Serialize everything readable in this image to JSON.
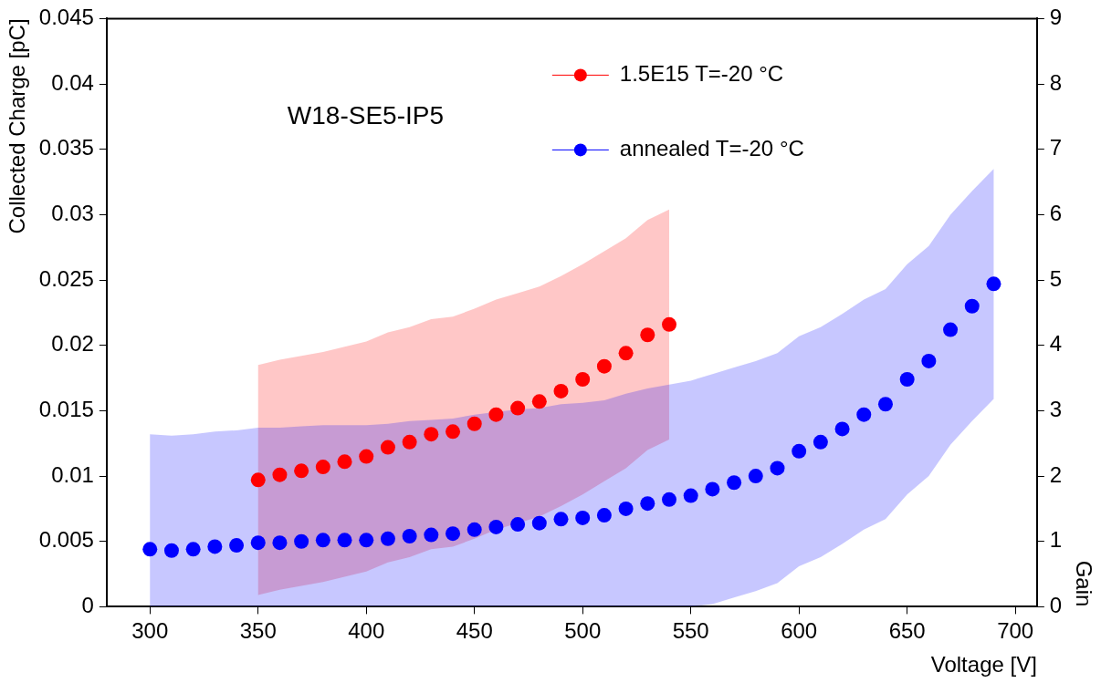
{
  "chart_data": {
    "type": "scatter",
    "xlabel": "Voltage [V]",
    "ylabel": "Collected Charge [pC]",
    "y2label": "Gain",
    "annotations": [
      "W18-SE5-IP5"
    ],
    "xlim": [
      280,
      710
    ],
    "xticks": [
      300,
      350,
      400,
      450,
      500,
      550,
      600,
      650,
      700
    ],
    "ylim": [
      0,
      0.045
    ],
    "yticks": [
      0,
      0.005,
      0.01,
      0.015,
      0.02,
      0.025,
      0.03,
      0.035,
      0.04,
      0.045
    ],
    "y2lim": [
      0,
      9
    ],
    "y2ticks": [
      0,
      1,
      2,
      3,
      4,
      5,
      6,
      7,
      8,
      9
    ],
    "legend": "top right",
    "marker": "circle",
    "series": [
      {
        "name": "1.5E15 T=-20 °C",
        "color": "#ff0000",
        "x": [
          350,
          360,
          370,
          380,
          390,
          400,
          410,
          420,
          430,
          440,
          450,
          460,
          470,
          480,
          490,
          500,
          510,
          520,
          530,
          540
        ],
        "values": [
          0.0097,
          0.0101,
          0.0104,
          0.0107,
          0.0111,
          0.0115,
          0.0122,
          0.0126,
          0.0132,
          0.0134,
          0.014,
          0.0147,
          0.0152,
          0.0157,
          0.0165,
          0.0174,
          0.0184,
          0.0194,
          0.0208,
          0.0216
        ],
        "lower": [
          0.0009,
          0.0013,
          0.0016,
          0.0019,
          0.0023,
          0.0027,
          0.0034,
          0.0038,
          0.0044,
          0.0046,
          0.0052,
          0.0059,
          0.0064,
          0.0069,
          0.0077,
          0.0086,
          0.0096,
          0.0106,
          0.012,
          0.0128
        ],
        "upper": [
          0.0185,
          0.0189,
          0.0192,
          0.0195,
          0.0199,
          0.0203,
          0.021,
          0.0214,
          0.022,
          0.0222,
          0.0228,
          0.0235,
          0.024,
          0.0245,
          0.0253,
          0.0262,
          0.0272,
          0.0282,
          0.0296,
          0.0304
        ]
      },
      {
        "name": "annealed T=-20 °C",
        "color": "#0000ff",
        "x": [
          300,
          310,
          320,
          330,
          340,
          350,
          360,
          370,
          380,
          390,
          400,
          410,
          420,
          430,
          440,
          450,
          460,
          470,
          480,
          490,
          500,
          510,
          520,
          530,
          540,
          550,
          560,
          570,
          580,
          590,
          600,
          610,
          620,
          630,
          640,
          650,
          660,
          670,
          680,
          690
        ],
        "values": [
          0.0044,
          0.0043,
          0.0044,
          0.0046,
          0.0047,
          0.0049,
          0.0049,
          0.005,
          0.0051,
          0.0051,
          0.0051,
          0.0052,
          0.0054,
          0.0055,
          0.0056,
          0.0059,
          0.0061,
          0.0063,
          0.0064,
          0.0067,
          0.0068,
          0.007,
          0.0075,
          0.0079,
          0.0082,
          0.0085,
          0.009,
          0.0095,
          0.01,
          0.0106,
          0.0119,
          0.0126,
          0.0136,
          0.0147,
          0.0155,
          0.0174,
          0.0188,
          0.0212,
          0.023,
          0.0247
        ],
        "lower": [
          0,
          0,
          0,
          0,
          0,
          0,
          0,
          0,
          0,
          0,
          0,
          0,
          0,
          0,
          0,
          0,
          0,
          0,
          0,
          0,
          0,
          0,
          0,
          0,
          0,
          0,
          0.0002,
          0.0007,
          0.0012,
          0.0018,
          0.0031,
          0.0038,
          0.0048,
          0.0059,
          0.0067,
          0.0086,
          0.01,
          0.0124,
          0.0142,
          0.0159
        ],
        "upper": [
          0.0132,
          0.0131,
          0.0132,
          0.0134,
          0.0135,
          0.0137,
          0.0137,
          0.0138,
          0.0139,
          0.0139,
          0.0139,
          0.014,
          0.0142,
          0.0143,
          0.0144,
          0.0147,
          0.0149,
          0.0151,
          0.0152,
          0.0155,
          0.0156,
          0.0158,
          0.0163,
          0.0167,
          0.017,
          0.0173,
          0.0178,
          0.0183,
          0.0188,
          0.0194,
          0.0207,
          0.0214,
          0.0224,
          0.0235,
          0.0243,
          0.0262,
          0.0276,
          0.03,
          0.0318,
          0.0335
        ]
      }
    ]
  }
}
